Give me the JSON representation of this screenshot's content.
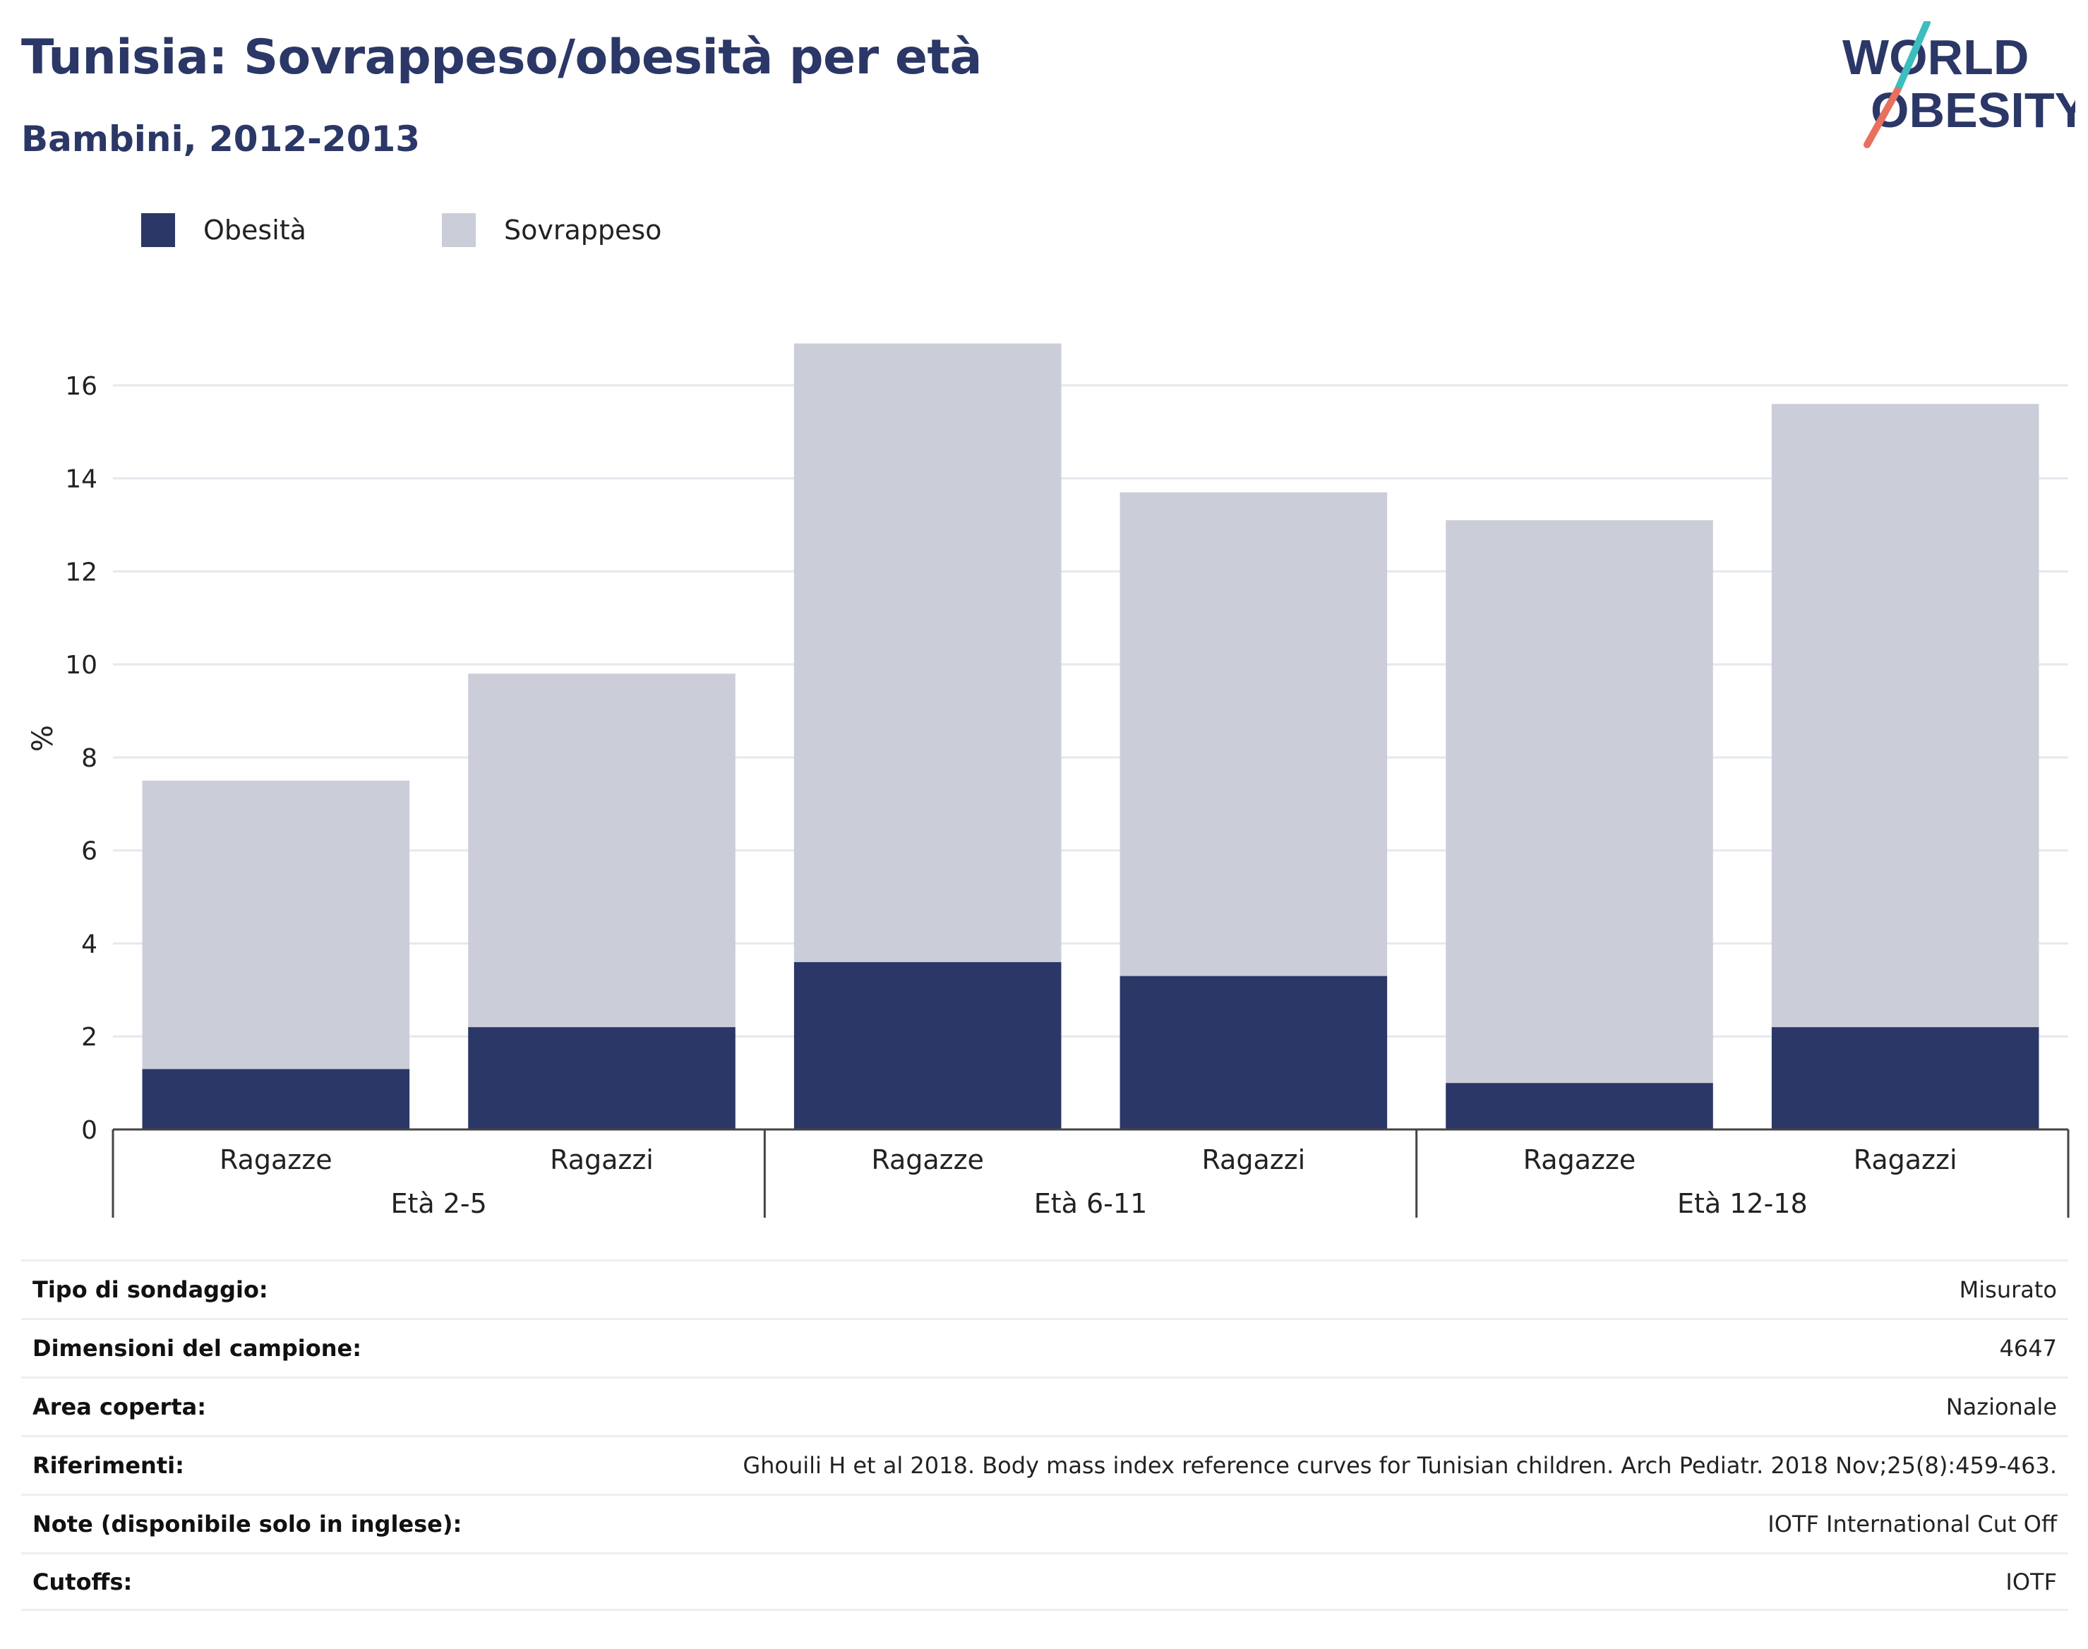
{
  "title": "Tunisia: Sovrappeso/obesità per età",
  "subtitle": "Bambini, 2012-2013",
  "logo": {
    "line1": "WORLD",
    "line2": "OBESITY"
  },
  "colors": {
    "obesity": "#2b3766",
    "overweight": "#cbcdd9",
    "title": "#2b3766",
    "logo_teal": "#3dbdbd",
    "logo_red": "#e8705f"
  },
  "legend": [
    {
      "label": "Obesità",
      "color": "#2b3766"
    },
    {
      "label": "Sovrappeso",
      "color": "#cbcdd9"
    }
  ],
  "chart_data": {
    "type": "bar",
    "stacked": true,
    "ylabel": "%",
    "xlabel": "",
    "ylim": [
      0,
      17
    ],
    "yticks": [
      0,
      2,
      4,
      6,
      8,
      10,
      12,
      14,
      16
    ],
    "grid": true,
    "legend_position": "top-left",
    "groups": [
      {
        "label": "Età 2-5",
        "categories": [
          "Ragazze",
          "Ragazzi"
        ]
      },
      {
        "label": "Età 6-11",
        "categories": [
          "Ragazze",
          "Ragazzi"
        ]
      },
      {
        "label": "Età 12-18",
        "categories": [
          "Ragazze",
          "Ragazzi"
        ]
      }
    ],
    "categories": [
      "Ragazze",
      "Ragazzi",
      "Ragazze",
      "Ragazzi",
      "Ragazze",
      "Ragazzi"
    ],
    "series": [
      {
        "name": "Obesità",
        "values": [
          1.3,
          2.2,
          3.6,
          3.3,
          1.0,
          2.2
        ]
      },
      {
        "name": "Sovrappeso",
        "values": [
          6.2,
          7.6,
          13.3,
          10.4,
          12.1,
          13.4
        ]
      }
    ]
  },
  "info": [
    {
      "label": "Tipo di sondaggio:",
      "value": "Misurato"
    },
    {
      "label": "Dimensioni del campione:",
      "value": "4647"
    },
    {
      "label": "Area coperta:",
      "value": "Nazionale"
    },
    {
      "label": "Riferimenti:",
      "value": "Ghouili H et al 2018. Body mass index reference curves for Tunisian children. Arch Pediatr. 2018 Nov;25(8):459-463."
    },
    {
      "label": "Note (disponibile solo in inglese):",
      "value": "IOTF International Cut Off"
    },
    {
      "label": "Cutoffs:",
      "value": "IOTF"
    }
  ]
}
